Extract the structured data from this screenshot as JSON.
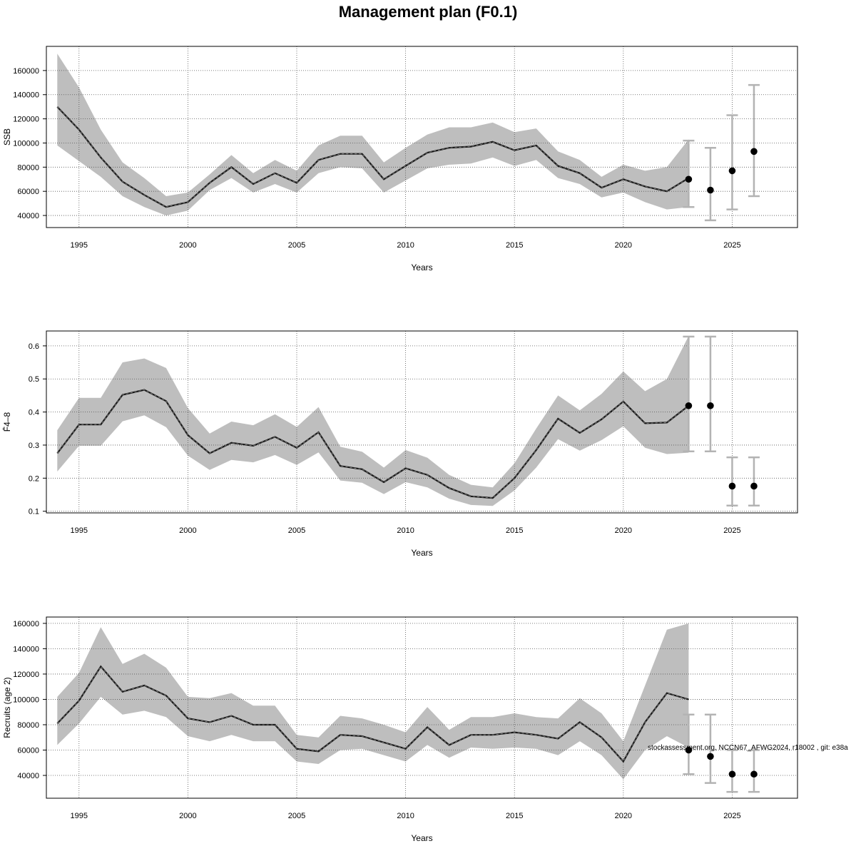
{
  "figure": {
    "title": "Management plan (F0.1)",
    "footnote": "stockassessment.org, NCCN67_AFWG2024, r18002 , git: e38a"
  },
  "colors": {
    "band": "#bebebe",
    "line": "#1a1a1a",
    "point": "#000000",
    "errorbar": "#b3b3b3",
    "grid": "#555555"
  },
  "chart_data": [
    {
      "type": "line",
      "panel": "ssb",
      "xlabel": "Years",
      "ylabel": "SSB",
      "xlim": [
        1993.5,
        2028.0
      ],
      "ylim": [
        30000,
        180000
      ],
      "xticks": [
        1995,
        2000,
        2005,
        2010,
        2015,
        2020,
        2025
      ],
      "yticks": [
        40000,
        60000,
        80000,
        100000,
        120000,
        140000,
        160000
      ],
      "grid": true,
      "x": [
        1994,
        1995,
        1996,
        1997,
        1998,
        1999,
        2000,
        2001,
        2002,
        2003,
        2004,
        2005,
        2006,
        2007,
        2008,
        2009,
        2010,
        2011,
        2012,
        2013,
        2014,
        2015,
        2016,
        2017,
        2018,
        2019,
        2020,
        2021,
        2022,
        2023
      ],
      "estimate": [
        130000,
        111000,
        88000,
        68000,
        57000,
        47000,
        51000,
        67000,
        80000,
        66000,
        75000,
        67000,
        86000,
        91000,
        91000,
        70000,
        81000,
        92000,
        96000,
        97000,
        101000,
        94000,
        98000,
        81000,
        75000,
        63000,
        70000,
        64000,
        60000,
        71000
      ],
      "upper": [
        174000,
        146000,
        111000,
        84000,
        71000,
        56000,
        59000,
        74000,
        90000,
        75000,
        86000,
        77000,
        98000,
        106000,
        106000,
        84000,
        96000,
        107000,
        113000,
        113000,
        117000,
        109000,
        112000,
        93000,
        86000,
        72000,
        82000,
        77000,
        80000,
        103000
      ],
      "lower": [
        98000,
        85000,
        72000,
        56000,
        47000,
        40000,
        44000,
        61000,
        71000,
        59000,
        66000,
        59000,
        75000,
        80000,
        79000,
        59000,
        69000,
        79000,
        82000,
        83000,
        88000,
        81000,
        86000,
        71000,
        66000,
        55000,
        59000,
        51000,
        45000,
        47000
      ],
      "forecast": {
        "x": [
          2023,
          2024,
          2025,
          2026
        ],
        "median": [
          70000,
          61000,
          77000,
          93000
        ],
        "low": [
          47000,
          36000,
          45000,
          56000
        ],
        "high": [
          102000,
          96000,
          123000,
          148000
        ]
      }
    },
    {
      "type": "line",
      "panel": "fbar",
      "xlabel": "Years",
      "ylabel": "F̄4–8",
      "xlim": [
        1993.5,
        2028.0
      ],
      "ylim": [
        0.095,
        0.645
      ],
      "xticks": [
        1995,
        2000,
        2005,
        2010,
        2015,
        2020,
        2025
      ],
      "yticks": [
        0.1,
        0.2,
        0.3,
        0.4,
        0.5,
        0.6
      ],
      "grid": true,
      "x": [
        1994,
        1995,
        1996,
        1997,
        1998,
        1999,
        2000,
        2001,
        2002,
        2003,
        2004,
        2005,
        2006,
        2007,
        2008,
        2009,
        2010,
        2011,
        2012,
        2013,
        2014,
        2015,
        2016,
        2017,
        2018,
        2019,
        2020,
        2021,
        2022,
        2023
      ],
      "estimate": [
        0.275,
        0.362,
        0.362,
        0.452,
        0.467,
        0.433,
        0.33,
        0.275,
        0.307,
        0.298,
        0.325,
        0.292,
        0.339,
        0.237,
        0.227,
        0.188,
        0.23,
        0.21,
        0.17,
        0.145,
        0.14,
        0.2,
        0.285,
        0.38,
        0.337,
        0.378,
        0.432,
        0.366,
        0.368,
        0.419
      ],
      "upper": [
        0.345,
        0.443,
        0.443,
        0.55,
        0.562,
        0.533,
        0.412,
        0.335,
        0.371,
        0.36,
        0.393,
        0.355,
        0.415,
        0.295,
        0.28,
        0.232,
        0.285,
        0.262,
        0.21,
        0.18,
        0.172,
        0.245,
        0.35,
        0.45,
        0.405,
        0.455,
        0.523,
        0.463,
        0.5,
        0.63
      ],
      "lower": [
        0.22,
        0.298,
        0.298,
        0.372,
        0.39,
        0.354,
        0.268,
        0.225,
        0.255,
        0.248,
        0.27,
        0.24,
        0.278,
        0.193,
        0.186,
        0.152,
        0.188,
        0.172,
        0.138,
        0.119,
        0.116,
        0.163,
        0.232,
        0.318,
        0.283,
        0.315,
        0.357,
        0.292,
        0.273,
        0.277
      ],
      "forecast": {
        "x": [
          2023,
          2024,
          2025,
          2026
        ],
        "median": [
          0.419,
          0.419,
          0.176,
          0.176
        ],
        "low": [
          0.281,
          0.281,
          0.117,
          0.117
        ],
        "high": [
          0.628,
          0.628,
          0.263,
          0.263
        ]
      }
    },
    {
      "type": "line",
      "panel": "recruits",
      "xlabel": "Years",
      "ylabel": "Recruits (age 2)",
      "xlim": [
        1993.5,
        2028.0
      ],
      "ylim": [
        22000,
        165000
      ],
      "xticks": [
        1995,
        2000,
        2005,
        2010,
        2015,
        2020,
        2025
      ],
      "yticks": [
        40000,
        60000,
        80000,
        100000,
        120000,
        140000,
        160000
      ],
      "grid": true,
      "x": [
        1994,
        1995,
        1996,
        1997,
        1998,
        1999,
        2000,
        2001,
        2002,
        2003,
        2004,
        2005,
        2006,
        2007,
        2008,
        2009,
        2010,
        2011,
        2012,
        2013,
        2014,
        2015,
        2016,
        2017,
        2018,
        2019,
        2020,
        2021,
        2022,
        2023
      ],
      "estimate": [
        81000,
        99000,
        126000,
        106000,
        111000,
        103000,
        85000,
        82000,
        87000,
        80000,
        80000,
        61000,
        59000,
        72000,
        71000,
        66000,
        61000,
        78000,
        64000,
        72000,
        72000,
        74000,
        72000,
        69000,
        82000,
        70000,
        51000,
        82000,
        105000,
        100000
      ],
      "upper": [
        102000,
        121000,
        157000,
        128000,
        136000,
        125000,
        102000,
        101000,
        105000,
        95000,
        95000,
        72000,
        70000,
        87000,
        85000,
        80000,
        74000,
        94000,
        76000,
        86000,
        86000,
        89000,
        86000,
        85000,
        101000,
        89000,
        67000,
        111000,
        155000,
        160000
      ],
      "lower": [
        64000,
        81000,
        102000,
        88000,
        91000,
        86000,
        71000,
        67000,
        72000,
        67000,
        67000,
        51000,
        49000,
        60000,
        61000,
        56000,
        51000,
        64000,
        54000,
        62000,
        61000,
        62000,
        61000,
        56000,
        67000,
        56000,
        37000,
        60000,
        71000,
        62000
      ],
      "forecast": {
        "x": [
          2023,
          2024,
          2025,
          2026
        ],
        "median": [
          60000,
          55000,
          41000,
          41000
        ],
        "low": [
          41000,
          34000,
          27000,
          27000
        ],
        "high": [
          88000,
          88000,
          60000,
          60000
        ]
      }
    }
  ]
}
